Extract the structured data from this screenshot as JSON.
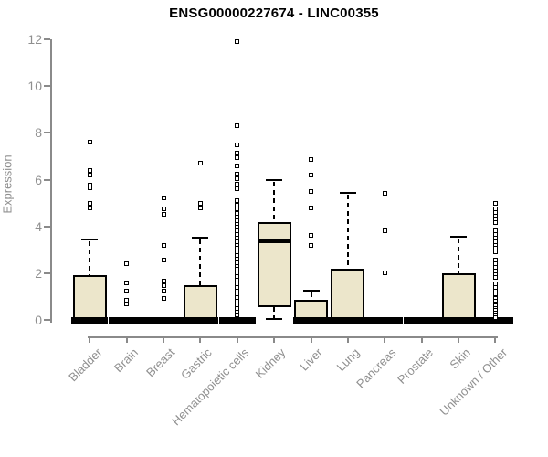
{
  "chart_data": {
    "type": "boxplot",
    "title": "ENSG00000227674 - LINC00355",
    "xlabel": "",
    "ylabel": "Expression",
    "ylim": [
      0,
      12
    ],
    "yticks": [
      0,
      2,
      4,
      6,
      8,
      10,
      12
    ],
    "grid": false,
    "legend": "none",
    "box_fill_color": "#ece6cb",
    "box_line_color": "#000000",
    "axis_color": "#8a8a8a",
    "categories": [
      "Bladder",
      "Brain",
      "Breast",
      "Gastric",
      "Hematopoietic cells",
      "Kidney",
      "Liver",
      "Lung",
      "Pancreas",
      "Prostate",
      "Skin",
      "Unknown / Other"
    ],
    "boxes": [
      {
        "category": "Bladder",
        "whisker_low": 0,
        "q1": 0,
        "median": 0,
        "q3": 1.9,
        "whisker_high": 3.45,
        "outliers": [
          7.6,
          6.4,
          6.2,
          5.75,
          5.65,
          5.0,
          4.8
        ]
      },
      {
        "category": "Brain",
        "whisker_low": 0,
        "q1": 0,
        "median": 0,
        "q3": 0,
        "whisker_high": 0,
        "outliers": [
          2.4,
          1.6,
          1.25,
          0.85,
          0.7
        ]
      },
      {
        "category": "Breast",
        "whisker_low": 0,
        "q1": 0,
        "median": 0,
        "q3": 0,
        "whisker_high": 0,
        "outliers": [
          5.2,
          4.75,
          4.5,
          3.2,
          2.55,
          1.65,
          1.45,
          1.25,
          0.9
        ]
      },
      {
        "category": "Gastric",
        "whisker_low": 0,
        "q1": 0,
        "median": 0,
        "q3": 1.5,
        "whisker_high": 3.5,
        "outliers": [
          6.7,
          5.0,
          4.8
        ]
      },
      {
        "category": "Hematopoietic cells",
        "whisker_low": 0,
        "q1": 0,
        "median": 0,
        "q3": 0,
        "whisker_high": 0,
        "outliers": [
          11.9,
          8.3,
          7.5,
          7.15,
          6.95,
          6.6,
          6.25,
          6.05,
          5.8,
          5.6,
          5.1,
          4.9,
          4.75,
          4.55,
          4.4,
          4.25,
          4.1,
          3.95,
          3.8,
          3.65,
          3.5,
          3.35,
          3.2,
          3.05,
          2.9,
          2.75,
          2.6,
          2.45,
          2.3,
          2.15,
          2.0,
          1.85,
          1.7,
          1.55,
          1.4,
          1.25,
          1.1,
          0.95,
          0.8,
          0.65,
          0.5,
          0.35,
          0.2
        ]
      },
      {
        "category": "Kidney",
        "whisker_low": 0.05,
        "q1": 0.55,
        "median": 3.4,
        "q3": 4.2,
        "whisker_high": 6.0,
        "outliers": []
      },
      {
        "category": "Liver",
        "whisker_low": 0,
        "q1": 0,
        "median": 0,
        "q3": 0.85,
        "whisker_high": 1.25,
        "outliers": [
          6.85,
          6.2,
          5.5,
          4.8,
          3.6,
          3.2
        ]
      },
      {
        "category": "Lung",
        "whisker_low": 0,
        "q1": 0,
        "median": 0,
        "q3": 2.2,
        "whisker_high": 5.45,
        "outliers": []
      },
      {
        "category": "Pancreas",
        "whisker_low": 0,
        "q1": 0,
        "median": 0,
        "q3": 0,
        "whisker_high": 0,
        "outliers": [
          5.4,
          3.8,
          2.0
        ]
      },
      {
        "category": "Prostate",
        "whisker_low": 0,
        "q1": 0,
        "median": 0,
        "q3": 0,
        "whisker_high": 0,
        "outliers": []
      },
      {
        "category": "Skin",
        "whisker_low": 0,
        "q1": 0,
        "median": 0,
        "q3": 2.0,
        "whisker_high": 3.55,
        "outliers": []
      },
      {
        "category": "Unknown / Other",
        "whisker_low": 0,
        "q1": 0,
        "median": 0,
        "q3": 0,
        "whisker_high": 0,
        "outliers": [
          5.0,
          4.75,
          4.6,
          4.45,
          4.3,
          4.15,
          3.8,
          3.65,
          3.5,
          3.35,
          3.2,
          3.05,
          2.9,
          2.55,
          2.4,
          2.25,
          2.1,
          1.95,
          1.8,
          1.55,
          1.4,
          1.25,
          1.1,
          0.9,
          0.8,
          0.7,
          0.6,
          0.5,
          0.4,
          0.3,
          0.2,
          0.1
        ]
      }
    ]
  }
}
